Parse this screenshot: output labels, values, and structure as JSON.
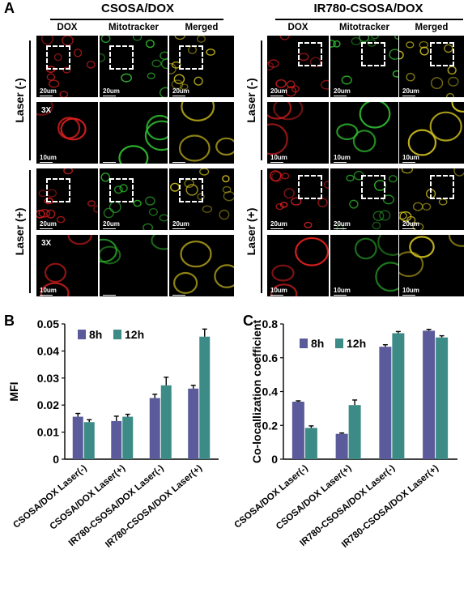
{
  "panel_a": {
    "letter": "A",
    "groups": [
      {
        "title": "CSOSA/DOX",
        "columns": [
          "DOX",
          "Mitotracker",
          "Merged"
        ],
        "rows": [
          {
            "label": "Laser (-)"
          },
          {
            "label": "Laser (+)"
          }
        ]
      },
      {
        "title": "IR780-CSOSA/DOX",
        "columns": [
          "DOX",
          "Mitotracker",
          "Merged"
        ],
        "rows": [
          {
            "label": "Laser (-)"
          },
          {
            "label": "Laser (+)"
          }
        ]
      }
    ],
    "scale_low": "20um",
    "scale_high": "10um",
    "magnification": "3X",
    "colors": {
      "dox": "#e02020",
      "mito": "#30c030",
      "merged": "#d0c020"
    }
  },
  "chart_data": [
    {
      "letter": "B",
      "type": "bar",
      "title": "",
      "xlabel": "",
      "ylabel": "MFI",
      "ylim": [
        0,
        0.05
      ],
      "yticks": [
        "0",
        "0.01",
        "0.02",
        "0.03",
        "0.04",
        "0.05"
      ],
      "ytick_values": [
        0,
        0.01,
        0.02,
        0.03,
        0.04,
        0.05
      ],
      "categories": [
        "CSOSA/DOX Laser(-)",
        "CSOSA/DOX Laser(+)",
        "IR780-CSOSA/DOX Laser(-)",
        "IR780-CSOSA/DOX Laser(+)"
      ],
      "series": [
        {
          "name": "8h",
          "color": "#5b5b9b",
          "values": [
            0.0157,
            0.0141,
            0.0226,
            0.0261
          ],
          "errors": [
            0.0012,
            0.0018,
            0.0014,
            0.0012
          ]
        },
        {
          "name": "12h",
          "color": "#3d8b86",
          "values": [
            0.0137,
            0.0157,
            0.0273,
            0.0453
          ],
          "errors": [
            0.0009,
            0.0009,
            0.003,
            0.0028
          ]
        }
      ],
      "legend_position": "top-left"
    },
    {
      "letter": "C",
      "type": "bar",
      "title": "",
      "xlabel": "",
      "ylabel": "Co-locallization coefficient",
      "ylim": [
        0,
        0.8
      ],
      "yticks": [
        "0",
        "0.2",
        "0.4",
        "0.6",
        "0.8"
      ],
      "ytick_values": [
        0,
        0.2,
        0.4,
        0.6,
        0.8
      ],
      "categories": [
        "CSOSA/DOX Laser(-)",
        "CSOSA/DOX Laser(+)",
        "IR780-CSOSA/DOX Laser(-)",
        "IR780-CSOSA/DOX Laser(+)"
      ],
      "series": [
        {
          "name": "8h",
          "color": "#5b5b9b",
          "values": [
            0.34,
            0.15,
            0.665,
            0.76
          ],
          "errors": [
            0.005,
            0.005,
            0.012,
            0.008
          ]
        },
        {
          "name": "12h",
          "color": "#3d8b86",
          "values": [
            0.185,
            0.32,
            0.745,
            0.72
          ],
          "errors": [
            0.012,
            0.03,
            0.01,
            0.01
          ]
        }
      ],
      "legend_position": "top-left"
    }
  ]
}
